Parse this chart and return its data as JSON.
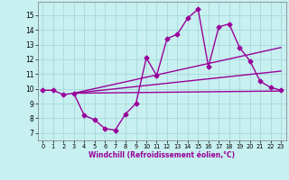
{
  "xlabel": "Windchill (Refroidissement éolien,°C)",
  "x_values": [
    0,
    1,
    2,
    3,
    4,
    5,
    6,
    7,
    8,
    9,
    10,
    11,
    12,
    13,
    14,
    15,
    16,
    17,
    18,
    19,
    20,
    21,
    22,
    23
  ],
  "y_data": [
    9.9,
    9.9,
    9.6,
    9.7,
    8.2,
    7.9,
    7.3,
    7.2,
    8.3,
    9.0,
    12.1,
    10.9,
    13.4,
    13.7,
    14.8,
    15.4,
    11.5,
    14.2,
    14.4,
    12.8,
    11.9,
    10.5,
    10.1,
    9.9
  ],
  "line_color": "#990099",
  "bg_color": "#c8f0f0",
  "grid_color": "#aadcdc",
  "ylim": [
    6.5,
    15.9
  ],
  "xlim": [
    -0.5,
    23.5
  ],
  "yticks": [
    7,
    8,
    9,
    10,
    11,
    12,
    13,
    14,
    15
  ],
  "xticks": [
    0,
    1,
    2,
    3,
    4,
    5,
    6,
    7,
    8,
    9,
    10,
    11,
    12,
    13,
    14,
    15,
    16,
    17,
    18,
    19,
    20,
    21,
    22,
    23
  ],
  "marker": "D",
  "marker_size": 2.5,
  "line_width": 1.0,
  "trend_lines": [
    {
      "x": [
        3,
        23
      ],
      "y": [
        9.7,
        9.85
      ]
    },
    {
      "x": [
        3,
        23
      ],
      "y": [
        9.7,
        11.2
      ]
    },
    {
      "x": [
        3,
        23
      ],
      "y": [
        9.7,
        12.8
      ]
    }
  ]
}
